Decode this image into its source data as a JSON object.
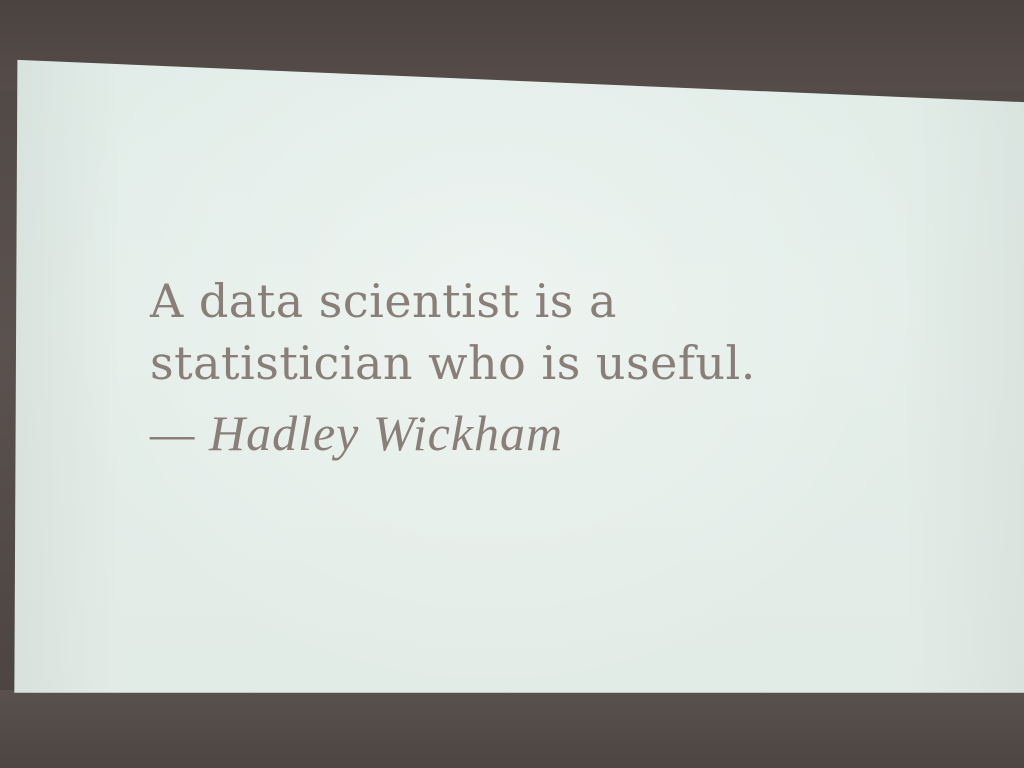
{
  "slide": {
    "quote_lines": [
      "A data scientist is a",
      "statistician who is useful."
    ],
    "attribution": "— Hadley Wickham"
  },
  "colors": {
    "screen": "#e2ece7",
    "text": "#8a7e79",
    "wall": "#524a46"
  }
}
